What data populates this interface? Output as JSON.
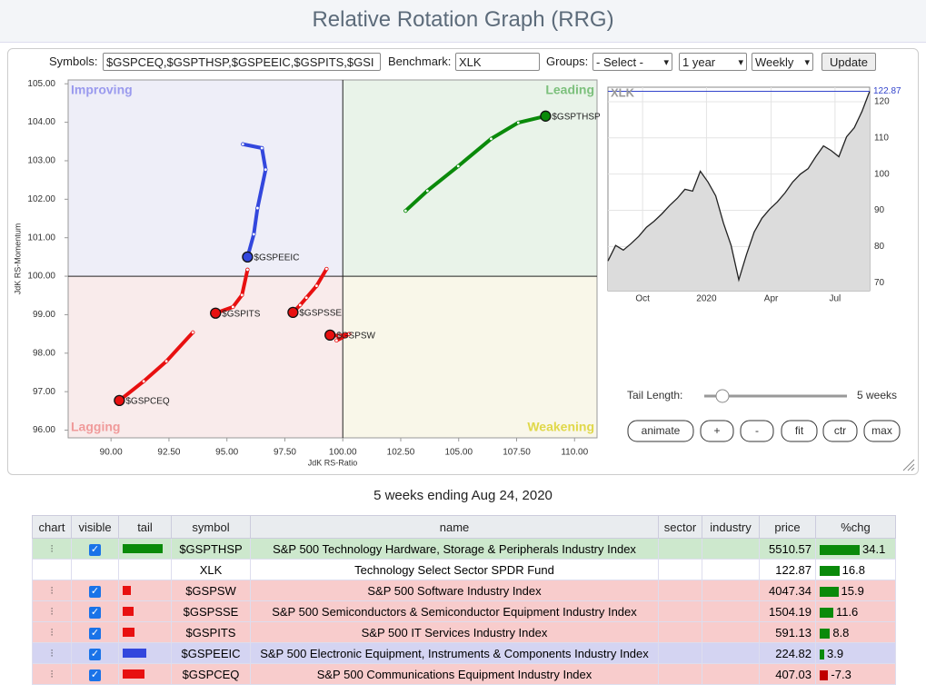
{
  "header": {
    "title": "Relative Rotation Graph (RRG)"
  },
  "controls": {
    "symbols_label": "Symbols:",
    "symbols": "$GSPCEQ,$GSPTHSP,$GSPEEIC,$GSPITS,$GSI",
    "benchmark_label": "Benchmark:",
    "benchmark": "XLK",
    "groups_label": "Groups:",
    "groups": "- Select -",
    "period": "1 year",
    "frequency": "Weekly",
    "update": "Update",
    "tail_length_label": "Tail Length:",
    "tail_length": "5 weeks",
    "buttons": [
      "animate",
      "+",
      "-",
      "fit",
      "ctr",
      "max"
    ]
  },
  "chart_data": [
    {
      "type": "rrg",
      "xlabel": "JdK RS-Ratio",
      "ylabel": "JdK RS-Momentum",
      "xlim": [
        88.15,
        110.97
      ],
      "ylim": [
        95.8,
        105.1
      ],
      "center": [
        100,
        100
      ],
      "xticks": [
        {
          "value": 90,
          "label": "90.00"
        },
        {
          "value": 92.5,
          "label": "92.50"
        },
        {
          "value": 95,
          "label": "95.00"
        },
        {
          "value": 97.5,
          "label": "97.50"
        },
        {
          "value": 100,
          "label": "100.00"
        },
        {
          "value": 102.5,
          "label": "102.50"
        },
        {
          "value": 105,
          "label": "105.00"
        },
        {
          "value": 107.5,
          "label": "107.50"
        },
        {
          "value": 110,
          "label": "110.00"
        }
      ],
      "yticks": [
        {
          "value": 96,
          "label": "96.00"
        },
        {
          "value": 97,
          "label": "97.00"
        },
        {
          "value": 98,
          "label": "98.00"
        },
        {
          "value": 99,
          "label": "99.00"
        },
        {
          "value": 100,
          "label": "100.00"
        },
        {
          "value": 101,
          "label": "101.00"
        },
        {
          "value": 102,
          "label": "102.00"
        },
        {
          "value": 103,
          "label": "103.00"
        },
        {
          "value": 104,
          "label": "104.00"
        },
        {
          "value": 105,
          "label": "105.00"
        }
      ],
      "quadrants": {
        "improving": {
          "label": "Improving",
          "color": "#9a9aee",
          "fill": "#eeeef8"
        },
        "leading": {
          "label": "Leading",
          "color": "#7cc07c",
          "fill": "#e9f3e9"
        },
        "lagging": {
          "label": "Lagging",
          "color": "#f09a9a",
          "fill": "#f9ebeb"
        },
        "weakening": {
          "label": "Weakening",
          "color": "#e0d84a",
          "fill": "#f9f7e9"
        }
      },
      "series": [
        {
          "name": "$GSPTHSP",
          "color": "#0a8a0a",
          "x": [
            102.71,
            103.65,
            104.98,
            106.4,
            107.57,
            108.75
          ],
          "values": [
            101.7,
            102.22,
            102.86,
            103.57,
            103.99,
            104.16
          ]
        },
        {
          "name": "$GSPEEIC",
          "color": "#3347dd",
          "x": [
            95.69,
            96.51,
            96.67,
            96.32,
            96.16,
            95.89
          ],
          "values": [
            103.43,
            103.33,
            102.77,
            101.77,
            101.09,
            100.5
          ]
        },
        {
          "name": "$GSPITS",
          "color": "#e81010",
          "x": [
            95.89,
            95.65,
            95.26,
            94.51
          ],
          "values": [
            100.17,
            99.51,
            99.2,
            99.04
          ]
        },
        {
          "name": "$GSPSSE",
          "color": "#e81010",
          "x": [
            99.3,
            98.87,
            98.43,
            98.16,
            97.85
          ],
          "values": [
            100.19,
            99.75,
            99.44,
            99.25,
            99.06
          ]
        },
        {
          "name": "$GSPSW",
          "color": "#e81010",
          "x": [
            99.73,
            100.28,
            99.85,
            99.45
          ],
          "values": [
            98.33,
            98.5,
            98.45,
            98.47
          ]
        },
        {
          "name": "$GSPCEQ",
          "color": "#e81010",
          "x": [
            93.53,
            92.39,
            91.41,
            90.36
          ],
          "values": [
            98.54,
            97.79,
            97.27,
            96.77
          ]
        }
      ]
    },
    {
      "type": "line",
      "title": "XLK",
      "color": "#222222",
      "fill": "#dcdcdc",
      "last_color": "#3344cc",
      "values": [
        76,
        80.3,
        79,
        80.8,
        82.8,
        85.3,
        87,
        89,
        91.3,
        93.3,
        95.8,
        95.3,
        100.8,
        97.8,
        94,
        86.5,
        80.3,
        70.8,
        77.8,
        84,
        87.8,
        90.3,
        92.3,
        94.8,
        97.8,
        100,
        101.5,
        104.8,
        107.8,
        106.5,
        104.8,
        110.3,
        112.8,
        117.3,
        122.87
      ],
      "xlim": [
        0,
        34
      ],
      "xticks": [
        {
          "value": 4.5,
          "label": "Oct"
        },
        {
          "value": 12.8,
          "label": "2020"
        },
        {
          "value": 21.2,
          "label": "Apr"
        },
        {
          "value": 29.5,
          "label": "Jul"
        }
      ],
      "ylim": [
        67.8,
        124
      ],
      "yticks": [
        70,
        80,
        90,
        100,
        110,
        120
      ],
      "last": 122.87
    }
  ],
  "caption": "5 weeks ending Aug 24, 2020",
  "table": {
    "columns": [
      "chart",
      "visible",
      "tail",
      "symbol",
      "name",
      "sector",
      "industry",
      "price",
      "%chg"
    ],
    "rows": [
      {
        "symbol": "$GSPTHSP",
        "name": "S&P 500 Technology Hardware, Storage & Peripherals Industry Index",
        "price": 5510.57,
        "change": 34.1,
        "visible": true,
        "row_color": "#cde8cd"
      },
      {
        "symbol": "XLK",
        "name": "Technology Select Sector SPDR Fund",
        "price": 122.87,
        "change": 16.8,
        "visible": false,
        "row_color": "#ffffff"
      },
      {
        "symbol": "$GSPSW",
        "name": "S&P 500 Software Industry Index",
        "price": 4047.34,
        "change": 15.9,
        "visible": true,
        "row_color": "#f8cccc"
      },
      {
        "symbol": "$GSPSSE",
        "name": "S&P 500 Semiconductors & Semiconductor Equipment Industry Index",
        "price": 1504.19,
        "change": 11.6,
        "visible": true,
        "row_color": "#f8cccc"
      },
      {
        "symbol": "$GSPITS",
        "name": "S&P 500 IT Services Industry Index",
        "price": 591.13,
        "change": 8.8,
        "visible": true,
        "row_color": "#f8cccc"
      },
      {
        "symbol": "$GSPEEIC",
        "name": "S&P 500 Electronic Equipment, Instruments & Components Industry Index",
        "price": 224.82,
        "change": 3.9,
        "visible": true,
        "row_color": "#d4d4f2"
      },
      {
        "symbol": "$GSPCEQ",
        "name": "S&P 500 Communications Equipment Industry Index",
        "price": 407.03,
        "change": -7.3,
        "visible": true,
        "row_color": "#f8cccc"
      }
    ]
  }
}
